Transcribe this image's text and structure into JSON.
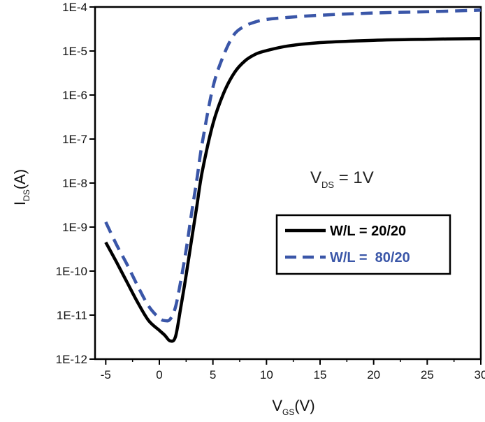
{
  "chart_data": {
    "type": "line",
    "title": "",
    "xlabel": {
      "main": "V",
      "sub": "GS",
      "suffix": "(V)"
    },
    "ylabel": {
      "main": "I",
      "sub": "DS",
      "suffix": "(A)"
    },
    "xlim": [
      -6,
      30
    ],
    "ylim": [
      1e-12,
      0.0001
    ],
    "y_scale": "log",
    "x_ticks": [
      -5,
      0,
      5,
      10,
      15,
      20,
      25,
      30
    ],
    "x_tick_labels": [
      "-5",
      "0",
      "5",
      "10",
      "15",
      "20",
      "25",
      "30"
    ],
    "y_ticks": [
      1e-12,
      1e-11,
      1e-10,
      1e-09,
      1e-08,
      1e-07,
      1e-06,
      1e-05,
      0.0001
    ],
    "y_tick_labels": [
      "1E-12",
      "1E-11",
      "1E-10",
      "1E-9",
      "1E-8",
      "1E-7",
      "1E-6",
      "1E-5",
      "1E-4"
    ],
    "grid": false,
    "legend_position": "center-right",
    "annotation": {
      "main": "V",
      "sub": "DS",
      "suffix": " = 1V"
    },
    "series": [
      {
        "name": "W/L = 20/20",
        "color": "#000000",
        "style": "solid",
        "x": [
          -5,
          -4,
          -3,
          -2,
          -1,
          0,
          0.5,
          1,
          1.5,
          2,
          2.5,
          3,
          3.5,
          4,
          5,
          6,
          7,
          8,
          9,
          10,
          12,
          15,
          20,
          25,
          30
        ],
        "y": [
          4.5e-10,
          1.6e-10,
          5.5e-11,
          1.9e-11,
          7.5e-12,
          4.5e-12,
          3.5e-12,
          2.6e-12,
          3.2e-12,
          1.5e-11,
          8e-11,
          5e-10,
          3e-09,
          1.8e-08,
          2.2e-07,
          1.1e-06,
          3.2e-06,
          6e-06,
          8.5e-06,
          1.02e-05,
          1.3e-05,
          1.55e-05,
          1.75e-05,
          1.85e-05,
          1.92e-05
        ]
      },
      {
        "name": "W/L =  80/20",
        "color": "#3a56a8",
        "style": "dashed",
        "x": [
          -5,
          -4,
          -3,
          -2,
          -1,
          0,
          0.5,
          1,
          1.5,
          2,
          2.5,
          3,
          3.5,
          4,
          5,
          6,
          7,
          8,
          9,
          10,
          12,
          15,
          20,
          25,
          30
        ],
        "y": [
          1.3e-09,
          4e-10,
          1.4e-10,
          4.5e-11,
          1.6e-11,
          8.5e-12,
          7.5e-12,
          8e-12,
          1.5e-11,
          6e-11,
          3e-10,
          2e-09,
          1.2e-08,
          8e-08,
          1.5e-06,
          8e-06,
          2.4e-05,
          3.7e-05,
          4.6e-05,
          5.2e-05,
          5.8e-05,
          6.5e-05,
          7.3e-05,
          7.8e-05,
          8.5e-05
        ]
      }
    ]
  }
}
